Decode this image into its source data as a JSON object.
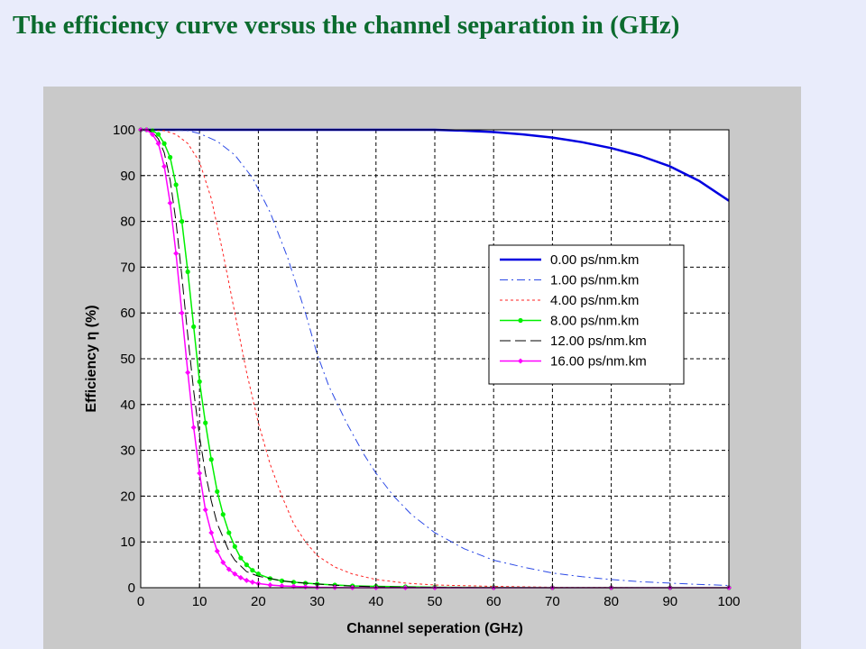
{
  "slide": {
    "title": "The efficiency curve versus the channel separation in (GHz)"
  },
  "chart_data": {
    "type": "line",
    "title": "",
    "xlabel": "Channel seperation (GHz)",
    "ylabel": "Efficiency η (%)",
    "xlim": [
      0,
      100
    ],
    "ylim": [
      0,
      100
    ],
    "xticks": [
      0,
      10,
      20,
      30,
      40,
      50,
      60,
      70,
      80,
      90,
      100
    ],
    "yticks": [
      0,
      10,
      20,
      30,
      40,
      50,
      60,
      70,
      80,
      90,
      100
    ],
    "grid": true,
    "legend_position": "right",
    "series": [
      {
        "name": "0.00 ps/nm.km",
        "color": "#0000e0",
        "style": "solid-thick",
        "marker": "none",
        "x": [
          0,
          10,
          20,
          30,
          40,
          50,
          55,
          60,
          65,
          70,
          75,
          80,
          85,
          90,
          95,
          100
        ],
        "y": [
          100,
          100,
          100,
          100,
          100,
          100,
          99.8,
          99.5,
          99,
          98.3,
          97.3,
          96,
          94.3,
          92,
          88.8,
          84.5
        ]
      },
      {
        "name": "1.00 ps/nm.km",
        "color": "#2b49e6",
        "style": "dashdot",
        "marker": "none",
        "x": [
          0,
          2,
          5,
          8,
          10,
          13,
          16,
          19,
          22,
          25,
          28,
          30,
          32,
          35,
          38,
          40,
          43,
          46,
          50,
          55,
          60,
          65,
          70,
          75,
          80,
          85,
          90,
          95,
          100
        ],
        "y": [
          100,
          100,
          100,
          99.8,
          99.2,
          97.5,
          94.5,
          89.5,
          82,
          72,
          60,
          51,
          44,
          36,
          29,
          25,
          20,
          16,
          12,
          8.5,
          6,
          4.5,
          3.2,
          2.4,
          1.8,
          1.3,
          1,
          0.7,
          0.5
        ]
      },
      {
        "name": "4.00 ps/nm.km",
        "color": "#ff2020",
        "style": "dotted",
        "marker": "none",
        "x": [
          0,
          2,
          4,
          6,
          8,
          10,
          12,
          14,
          16,
          18,
          20,
          22,
          24,
          26,
          28,
          30,
          33,
          36,
          40,
          45,
          50,
          60,
          70,
          80,
          90,
          100
        ],
        "y": [
          100,
          100,
          99.8,
          99,
          97,
          93,
          85,
          73,
          60,
          47,
          36,
          27,
          20,
          14,
          10,
          7,
          4.5,
          3,
          1.8,
          1,
          0.6,
          0.3,
          0.1,
          0.05,
          0,
          0
        ]
      },
      {
        "name": "8.00 ps/nm.km",
        "color": "#00f000",
        "style": "solid",
        "marker": "dot",
        "x": [
          0,
          1,
          2,
          3,
          4,
          5,
          6,
          7,
          8,
          9,
          10,
          11,
          12,
          13,
          14,
          15,
          16,
          17,
          18,
          19,
          20,
          22,
          24,
          26,
          28,
          30,
          33,
          36,
          40,
          45,
          50,
          60,
          70,
          80,
          90,
          100
        ],
        "y": [
          100,
          100,
          99.8,
          99,
          97,
          94,
          88,
          80,
          69,
          57,
          45,
          36,
          28,
          21,
          16,
          12,
          9,
          6.5,
          5,
          3.8,
          3,
          2,
          1.5,
          1.2,
          1,
          0.8,
          0.6,
          0.4,
          0.3,
          0.2,
          0.1,
          0.05,
          0,
          0,
          0,
          0
        ]
      },
      {
        "name": "12.00 ps/nm.km",
        "color": "#000000",
        "style": "longdash",
        "marker": "none",
        "x": [
          0,
          1,
          2,
          3,
          4,
          5,
          6,
          7,
          8,
          9,
          10,
          11,
          12,
          13,
          14,
          15,
          16,
          18,
          20,
          22,
          24,
          26,
          28,
          30,
          35,
          40,
          50,
          60,
          80,
          100
        ],
        "y": [
          100,
          100,
          99.5,
          98,
          95,
          89,
          80,
          68,
          55,
          43,
          33,
          25,
          19,
          14,
          11,
          8,
          6,
          3.5,
          2.5,
          2,
          1.5,
          1.2,
          1,
          0.8,
          0.4,
          0.2,
          0.1,
          0,
          0,
          0
        ]
      },
      {
        "name": "16.00 ps/nm.km",
        "color": "#ff00ff",
        "style": "solid",
        "marker": "diamond",
        "x": [
          0,
          1,
          2,
          3,
          4,
          5,
          6,
          7,
          8,
          9,
          10,
          11,
          12,
          13,
          14,
          15,
          16,
          17,
          18,
          19,
          20,
          22,
          24,
          26,
          28,
          30,
          33,
          36,
          40,
          45,
          50,
          60,
          70,
          80,
          90,
          100
        ],
        "y": [
          100,
          100,
          99,
          97,
          92,
          84,
          73,
          60,
          47,
          35,
          25,
          17,
          12,
          8,
          5.5,
          4,
          3,
          2.2,
          1.6,
          1.2,
          0.9,
          0.6,
          0.4,
          0.3,
          0.2,
          0.1,
          0.05,
          0,
          0,
          0,
          0,
          0,
          0,
          0,
          0,
          0
        ]
      }
    ]
  }
}
